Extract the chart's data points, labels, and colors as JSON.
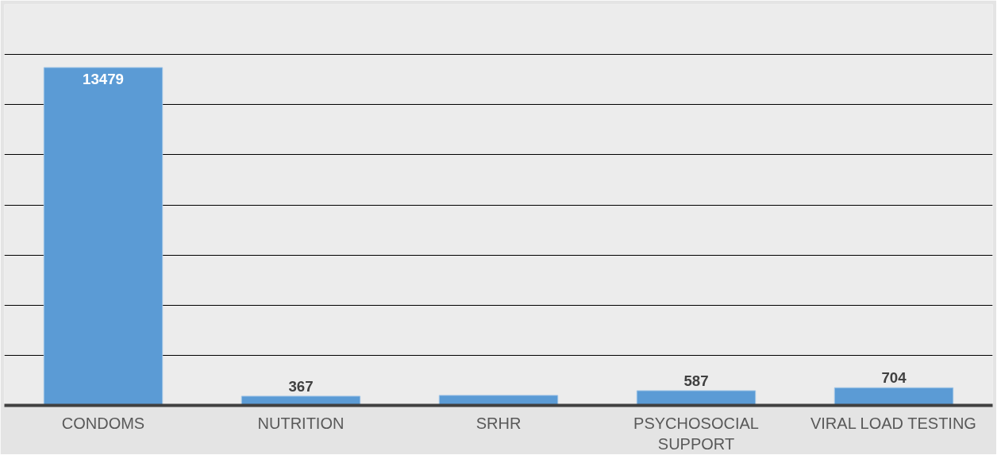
{
  "chart_data": {
    "type": "bar",
    "categories": [
      "CONDOMS",
      "NUTRITION",
      "SRHR",
      "PSYCHOSOCIAL SUPPORT",
      "VIRAL LOAD TESTING"
    ],
    "values": [
      13479,
      367,
      400,
      587,
      704
    ],
    "value_labels": [
      "13479",
      "367",
      null,
      "587",
      "704"
    ],
    "color": "#5b9bd5",
    "ylim": [
      0,
      16000
    ],
    "yticks": [
      {
        "value": 0,
        "label": null
      },
      {
        "value": 2000,
        "label": null
      },
      {
        "value": 4000,
        "label": null
      },
      {
        "value": 6000,
        "label": null
      },
      {
        "value": 8000,
        "label": null
      },
      {
        "value": 10000,
        "label": null
      },
      {
        "value": 12000,
        "label": null
      },
      {
        "value": 14000,
        "label": null
      },
      {
        "value": 16000,
        "label": null
      }
    ],
    "grid": "y",
    "tick_labels": "x"
  }
}
